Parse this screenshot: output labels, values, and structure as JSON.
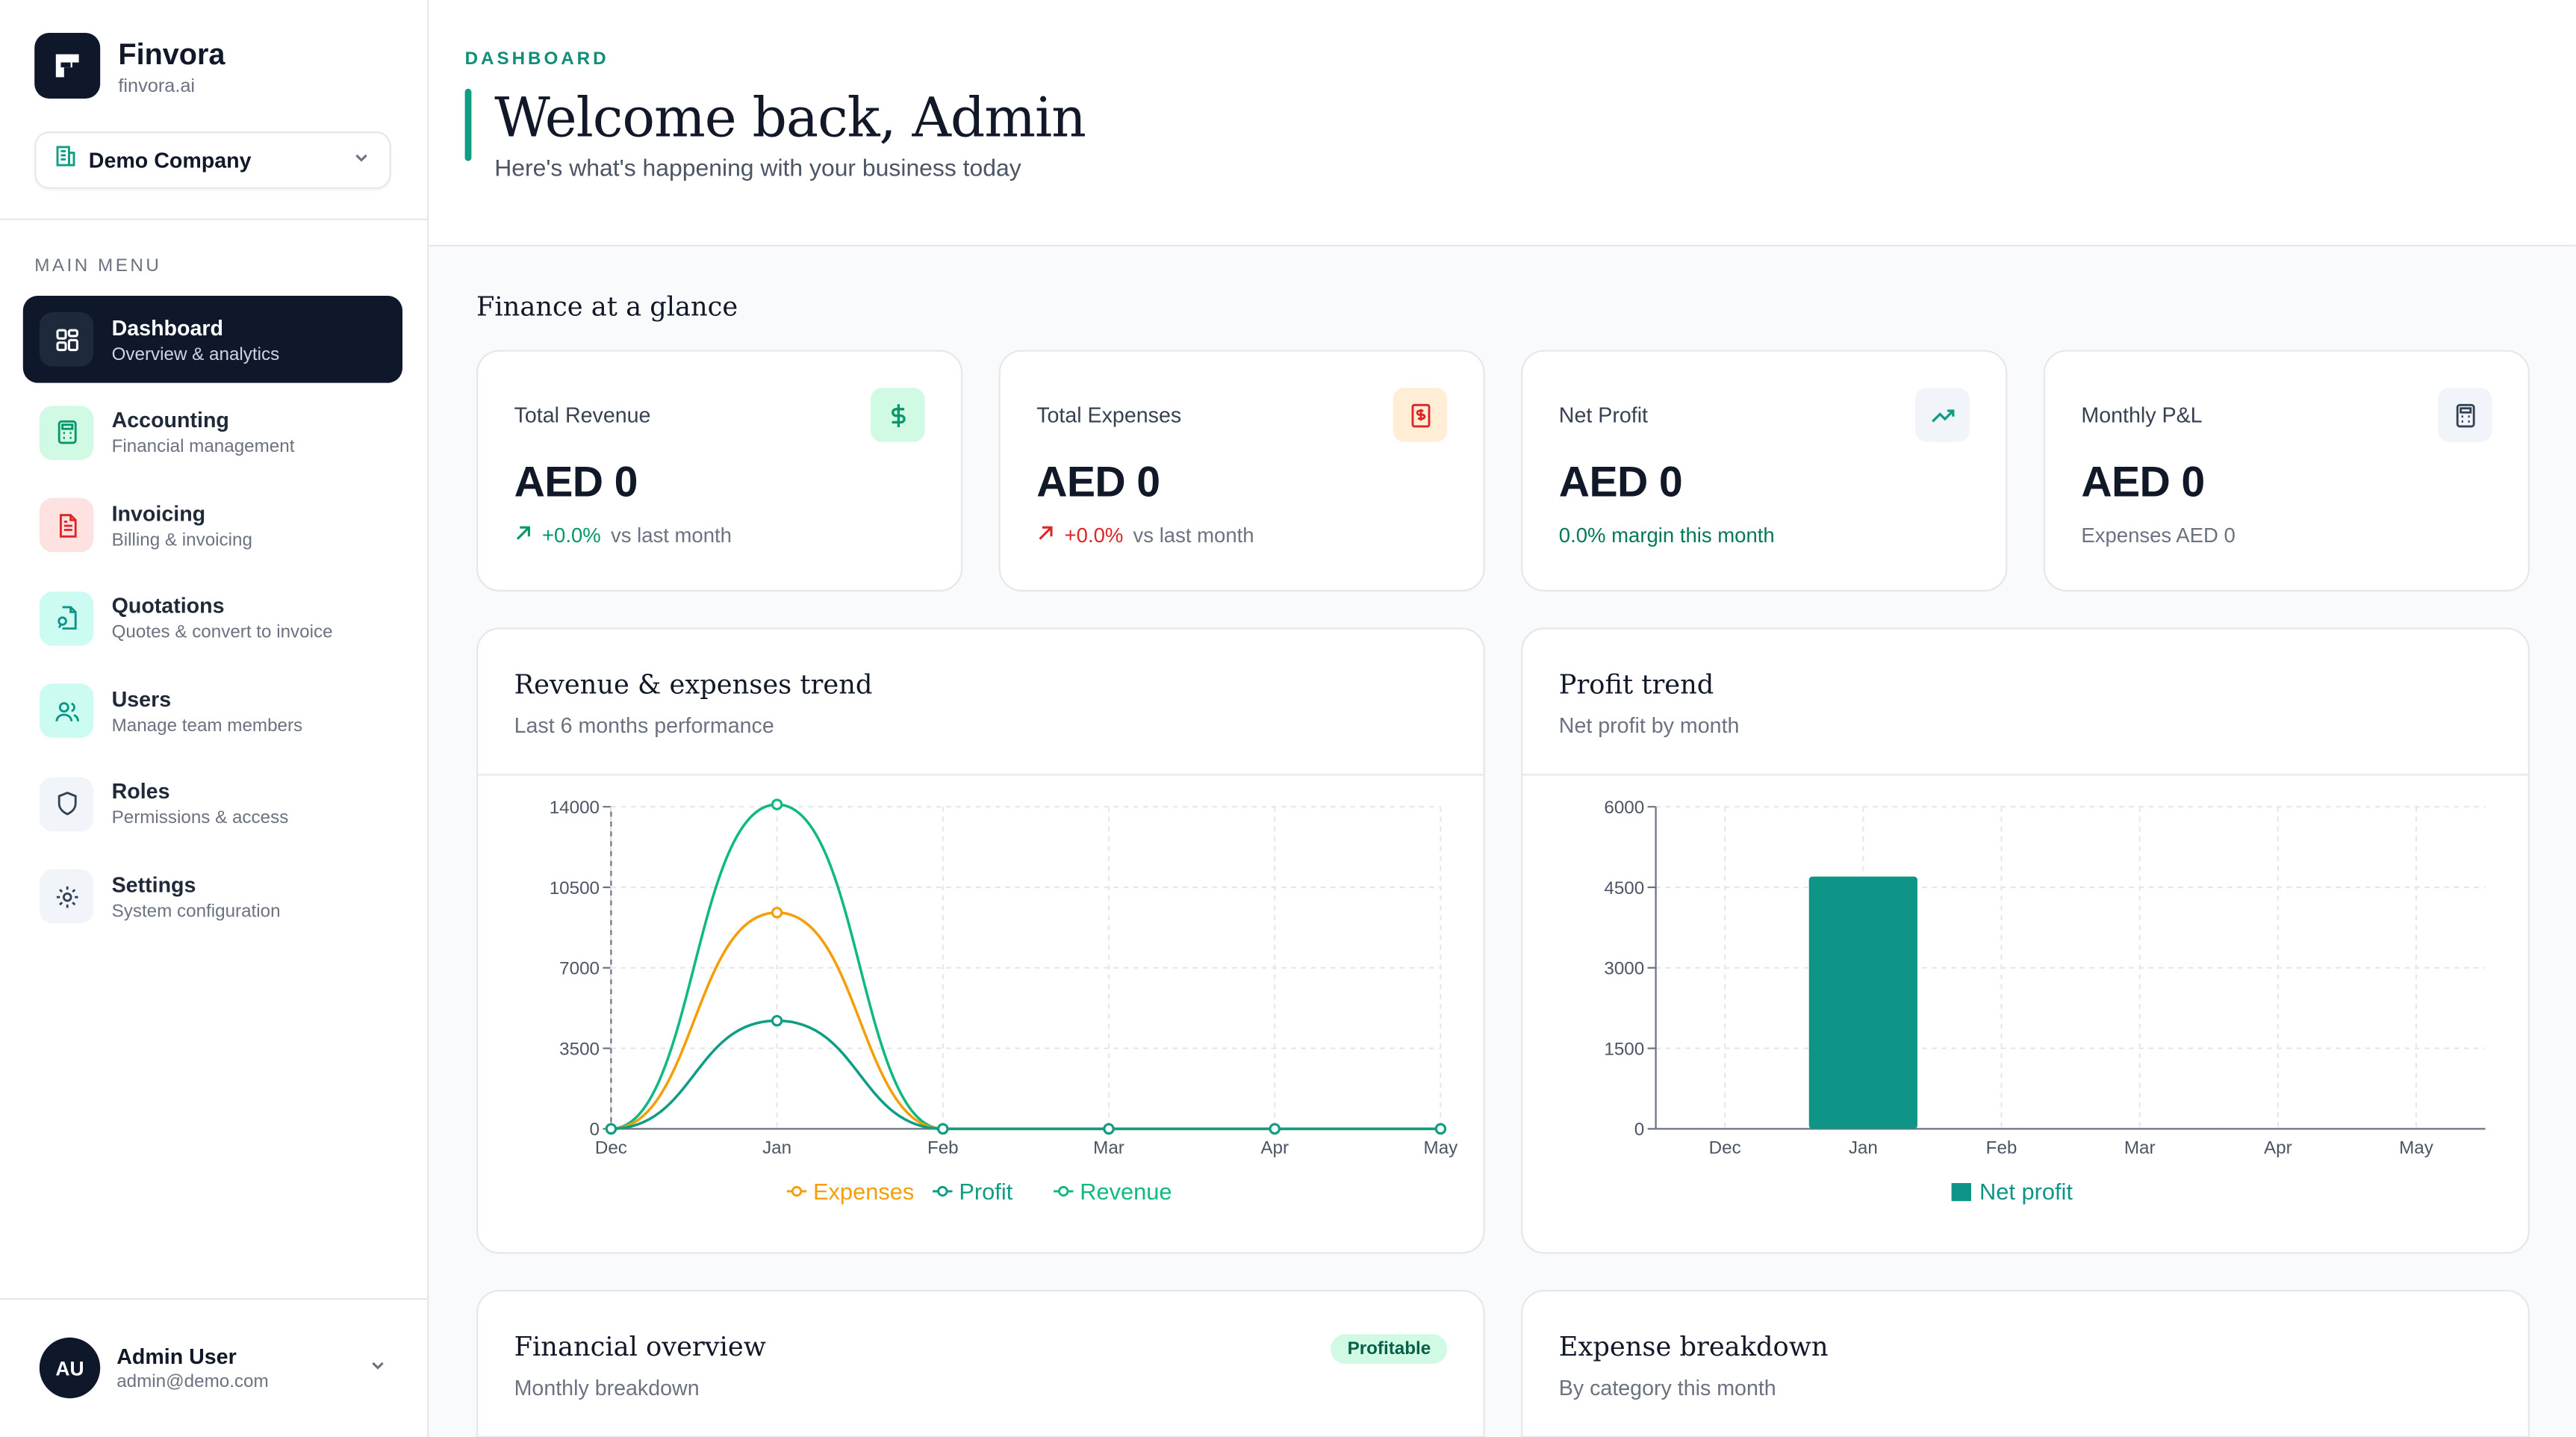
{
  "brand": {
    "name": "Finvora",
    "domain": "finvora.ai"
  },
  "company": {
    "label": "Demo Company"
  },
  "menu_title": "MAIN MENU",
  "nav": [
    {
      "label": "Dashboard",
      "sub": "Overview & analytics",
      "icon": "grid-icon",
      "active": true
    },
    {
      "label": "Accounting",
      "sub": "Financial management",
      "icon": "calculator-icon"
    },
    {
      "label": "Invoicing",
      "sub": "Billing & invoicing",
      "icon": "document-icon"
    },
    {
      "label": "Quotations",
      "sub": "Quotes & convert to invoice",
      "icon": "quote-file-icon"
    },
    {
      "label": "Users",
      "sub": "Manage team members",
      "icon": "users-icon"
    },
    {
      "label": "Roles",
      "sub": "Permissions & access",
      "icon": "shield-icon"
    },
    {
      "label": "Settings",
      "sub": "System configuration",
      "icon": "gear-icon"
    }
  ],
  "user": {
    "initials": "AU",
    "name": "Admin User",
    "email": "admin@demo.com"
  },
  "header": {
    "eyebrow": "DASHBOARD",
    "title": "Welcome back, Admin",
    "subtitle": "Here's what's happening with your business today"
  },
  "section_title": "Finance at a glance",
  "kpis": [
    {
      "label": "Total Revenue",
      "value": "AED 0",
      "delta": "+0.0%",
      "foot": "vs last month",
      "icon": "dollar-icon"
    },
    {
      "label": "Total Expenses",
      "value": "AED 0",
      "delta": "+0.0%",
      "foot": "vs last month",
      "icon": "receipt-icon"
    },
    {
      "label": "Net Profit",
      "value": "AED 0",
      "foot": "0.0% margin this month",
      "icon": "trend-up-icon"
    },
    {
      "label": "Monthly P&L",
      "value": "AED 0",
      "foot": "Expenses AED 0",
      "icon": "calculator-icon"
    }
  ],
  "panels": {
    "trend": {
      "title": "Revenue & expenses trend",
      "sub": "Last 6 months performance"
    },
    "profit": {
      "title": "Profit trend",
      "sub": "Net profit by month"
    },
    "overview": {
      "title": "Financial overview",
      "sub": "Monthly breakdown",
      "badge": "Profitable"
    },
    "expenses": {
      "title": "Expense breakdown",
      "sub": "By category this month"
    }
  },
  "colors": {
    "revenue": "#10b981",
    "expenses": "#f59e0b",
    "profit": "#0f9d84",
    "bar": "#0f9488"
  },
  "chart_data": [
    {
      "type": "line",
      "categories": [
        "Dec",
        "Jan",
        "Feb",
        "Mar",
        "Apr",
        "May"
      ],
      "series": [
        {
          "name": "Expenses",
          "values": [
            0,
            9400,
            0,
            0,
            0,
            0
          ]
        },
        {
          "name": "Profit",
          "values": [
            0,
            4700,
            0,
            0,
            0,
            0
          ]
        },
        {
          "name": "Revenue",
          "values": [
            0,
            14100,
            0,
            0,
            0,
            0
          ]
        }
      ],
      "ylim": [
        0,
        14000
      ],
      "yticks": [
        0,
        3500,
        7000,
        10500,
        14000
      ],
      "grid": true,
      "legend": "bottom"
    },
    {
      "type": "bar",
      "categories": [
        "Dec",
        "Jan",
        "Feb",
        "Mar",
        "Apr",
        "May"
      ],
      "series": [
        {
          "name": "Net profit",
          "values": [
            0,
            4700,
            0,
            0,
            0,
            0
          ]
        }
      ],
      "ylim": [
        0,
        6000
      ],
      "yticks": [
        0,
        1500,
        3000,
        4500,
        6000
      ],
      "grid": true,
      "legend": "bottom"
    }
  ]
}
